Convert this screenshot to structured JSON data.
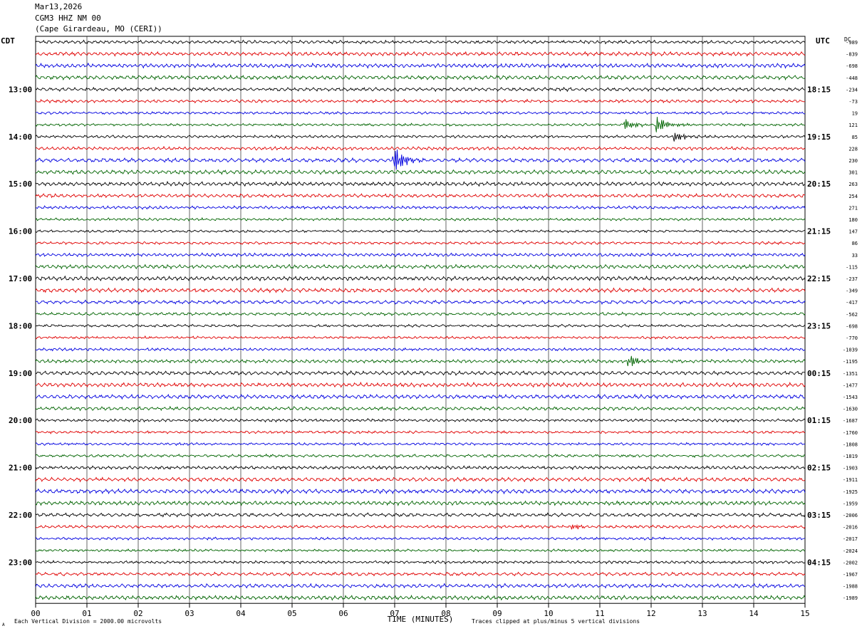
{
  "header": {
    "date": "Mar13,2026",
    "station": "CGM3 HHZ NM 00",
    "location": "(Cape Girardeau, MO (CERI))"
  },
  "left_zone_label": "CDT",
  "right_zone_label": "UTC",
  "dc_header": "DC",
  "footer": {
    "scale_note": "Each Vertical Division = 2000.00 microvolts",
    "clip_note": "Traces clipped at plus/minus 5 vertical divisions",
    "corner_mark": "A"
  },
  "chart_data": {
    "type": "line",
    "xlabel": "TIME (MINUTES)",
    "xlim": [
      0,
      15
    ],
    "x_ticks": [
      "00",
      "01",
      "02",
      "03",
      "04",
      "05",
      "06",
      "07",
      "08",
      "09",
      "10",
      "11",
      "12",
      "13",
      "14",
      "15"
    ],
    "trace_count": 48,
    "trace_interval_minutes": 15,
    "trace_colors": [
      "#000000",
      "#e00000",
      "#0000e0",
      "#006400"
    ],
    "left_hour_labels": [
      "13:00",
      "14:00",
      "15:00",
      "16:00",
      "17:00",
      "18:00",
      "19:00",
      "20:00",
      "21:00",
      "22:00",
      "23:00"
    ],
    "right_hour_labels": [
      "18:15",
      "19:15",
      "20:15",
      "21:15",
      "22:15",
      "23:15",
      "00:15",
      "01:15",
      "02:15",
      "03:15",
      "04:15"
    ],
    "dc_offsets": [
      "-989",
      "-839",
      "-698",
      "-448",
      "-234",
      "-73",
      "19",
      "121",
      "85",
      "228",
      "230",
      "301",
      "263",
      "254",
      "271",
      "180",
      "147",
      "86",
      "33",
      "-115",
      "-237",
      "-349",
      "-417",
      "-562",
      "-698",
      "-770",
      "-1039",
      "-1195",
      "-1351",
      "-1477",
      "-1543",
      "-1630",
      "-1687",
      "-1760",
      "-1808",
      "-1819",
      "-1903",
      "-1911",
      "-1925",
      "-1959",
      "-2006",
      "-2016",
      "-2017",
      "-2024",
      "-2002",
      "-1967",
      "-1988",
      "-1989"
    ],
    "events": [
      {
        "trace": 7,
        "minute": 11.5,
        "amplitude_divisions": 1.0
      },
      {
        "trace": 7,
        "minute": 12.15,
        "amplitude_divisions": 1.2
      },
      {
        "trace": 8,
        "minute": 12.5,
        "amplitude_divisions": 0.7
      },
      {
        "trace": 10,
        "minute": 7.0,
        "amplitude_divisions": 2.2
      },
      {
        "trace": 27,
        "minute": 11.6,
        "amplitude_divisions": 0.8
      },
      {
        "trace": 41,
        "minute": 10.5,
        "amplitude_divisions": 0.5
      }
    ]
  }
}
